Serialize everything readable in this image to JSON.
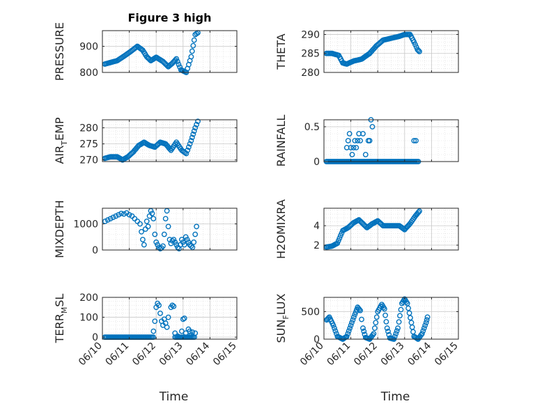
{
  "figure": {
    "marker_color": "#0072BD",
    "axes_color": "#262626",
    "grid_color": "#d9d9d9"
  },
  "chart_data": [
    {
      "type": "scatter",
      "title": "Figure 3 high",
      "ylabel_main": "PRESSURE",
      "ylabel_sub": "",
      "ylim": [
        800,
        960
      ],
      "yticks": [
        800,
        900
      ],
      "ytick_labels": [
        "800",
        "900"
      ],
      "xlim": [
        0,
        5
      ],
      "xticks": [
        0,
        1,
        2,
        3,
        4,
        5
      ],
      "xtick_labels": [],
      "xlabel": "",
      "keys": [
        [
          0.09,
          832
        ],
        [
          0.3,
          838
        ],
        [
          0.55,
          845
        ],
        [
          0.8,
          862
        ],
        [
          1.05,
          880
        ],
        [
          1.3,
          900
        ],
        [
          1.5,
          885
        ],
        [
          1.65,
          860
        ],
        [
          1.8,
          845
        ],
        [
          2.0,
          858
        ],
        [
          2.25,
          842
        ],
        [
          2.45,
          822
        ],
        [
          2.6,
          835
        ],
        [
          2.75,
          852
        ],
        [
          2.92,
          810
        ],
        [
          3.12,
          800
        ],
        [
          3.3,
          860
        ],
        [
          3.45,
          945
        ],
        [
          3.55,
          952
        ]
      ]
    },
    {
      "type": "scatter",
      "title": "",
      "ylabel_main": "THETA",
      "ylabel_sub": "",
      "ylim": [
        280,
        291
      ],
      "yticks": [
        280,
        285,
        290
      ],
      "ytick_labels": [
        "280",
        "285",
        "290"
      ],
      "xlim": [
        0,
        5
      ],
      "xticks": [
        0,
        1,
        2,
        3,
        4,
        5
      ],
      "xtick_labels": [],
      "xlabel": "",
      "keys": [
        [
          0.09,
          285
        ],
        [
          0.3,
          285
        ],
        [
          0.55,
          284.5
        ],
        [
          0.7,
          282.5
        ],
        [
          0.85,
          282.2
        ],
        [
          1.1,
          283
        ],
        [
          1.4,
          283.5
        ],
        [
          1.7,
          285
        ],
        [
          1.95,
          287
        ],
        [
          2.2,
          288.5
        ],
        [
          2.5,
          289
        ],
        [
          2.8,
          289.5
        ],
        [
          3.0,
          290
        ],
        [
          3.2,
          290
        ],
        [
          3.35,
          288
        ],
        [
          3.48,
          286
        ],
        [
          3.55,
          285.5
        ]
      ]
    },
    {
      "type": "scatter",
      "title": "",
      "ylabel_main": "AIR",
      "ylabel_sub": "T",
      "ylabel_tail": "EMP",
      "ylim": [
        269.5,
        282.5
      ],
      "yticks": [
        270,
        275,
        280
      ],
      "ytick_labels": [
        "270",
        "275",
        "280"
      ],
      "xlim": [
        0,
        5
      ],
      "xticks": [
        0,
        1,
        2,
        3,
        4,
        5
      ],
      "xtick_labels": [],
      "xlabel": "",
      "keys": [
        [
          0.09,
          270.5
        ],
        [
          0.3,
          271
        ],
        [
          0.55,
          271
        ],
        [
          0.75,
          270
        ],
        [
          0.95,
          271
        ],
        [
          1.15,
          272.5
        ],
        [
          1.35,
          274.5
        ],
        [
          1.55,
          275.5
        ],
        [
          1.75,
          274.5
        ],
        [
          1.95,
          274
        ],
        [
          2.15,
          275.5
        ],
        [
          2.35,
          275
        ],
        [
          2.55,
          273
        ],
        [
          2.75,
          275.5
        ],
        [
          2.95,
          273
        ],
        [
          3.12,
          272
        ],
        [
          3.3,
          276
        ],
        [
          3.45,
          280
        ],
        [
          3.55,
          282
        ]
      ]
    },
    {
      "type": "scatter",
      "title": "",
      "ylabel_main": "RAINFALL",
      "ylabel_sub": "",
      "ylim": [
        0,
        0.6
      ],
      "yticks": [
        0,
        0.5
      ],
      "ytick_labels": [
        "0",
        "0.5"
      ],
      "xlim": [
        0,
        5
      ],
      "xticks": [
        0,
        1,
        2,
        3,
        4,
        5
      ],
      "xtick_labels": [],
      "xlabel": "",
      "keys": [],
      "points": [
        [
          0.85,
          0.2
        ],
        [
          0.9,
          0.3
        ],
        [
          0.95,
          0.4
        ],
        [
          1.0,
          0.2
        ],
        [
          1.05,
          0.1
        ],
        [
          1.1,
          0.2
        ],
        [
          1.15,
          0.3
        ],
        [
          1.2,
          0.2
        ],
        [
          1.25,
          0.3
        ],
        [
          1.3,
          0.4
        ],
        [
          1.35,
          0.3
        ],
        [
          1.45,
          0.4
        ],
        [
          1.55,
          0.1
        ],
        [
          1.65,
          0.3
        ],
        [
          1.7,
          0.3
        ],
        [
          1.75,
          0.6
        ],
        [
          1.8,
          0.5
        ],
        [
          3.35,
          0.3
        ],
        [
          3.42,
          0.3
        ]
      ],
      "zero_ranges": [
        [
          0.09,
          3.55
        ]
      ]
    },
    {
      "type": "scatter",
      "title": "",
      "ylabel_main": "MIXDEPTH",
      "ylabel_sub": "",
      "ylim": [
        0,
        1600
      ],
      "yticks": [
        0,
        1000
      ],
      "ytick_labels": [
        "0",
        "1000"
      ],
      "xlim": [
        0,
        5
      ],
      "xticks": [
        0,
        1,
        2,
        3,
        4,
        5
      ],
      "xtick_labels": [],
      "xlabel": "",
      "keys": [],
      "points": [
        [
          0.1,
          1100
        ],
        [
          0.2,
          1150
        ],
        [
          0.3,
          1200
        ],
        [
          0.4,
          1250
        ],
        [
          0.5,
          1300
        ],
        [
          0.6,
          1350
        ],
        [
          0.7,
          1400
        ],
        [
          0.8,
          1380
        ],
        [
          0.9,
          1420
        ],
        [
          1.0,
          1350
        ],
        [
          1.1,
          1300
        ],
        [
          1.2,
          1200
        ],
        [
          1.3,
          1100
        ],
        [
          1.4,
          1000
        ],
        [
          1.45,
          700
        ],
        [
          1.5,
          400
        ],
        [
          1.55,
          200
        ],
        [
          1.6,
          800
        ],
        [
          1.65,
          1100
        ],
        [
          1.7,
          900
        ],
        [
          1.75,
          1300
        ],
        [
          1.8,
          1500
        ],
        [
          1.85,
          1400
        ],
        [
          1.9,
          1200
        ],
        [
          1.95,
          600
        ],
        [
          2.0,
          300
        ],
        [
          2.05,
          200
        ],
        [
          2.1,
          100
        ],
        [
          2.15,
          50
        ],
        [
          2.2,
          80
        ],
        [
          2.25,
          150
        ],
        [
          2.3,
          600
        ],
        [
          2.35,
          1200
        ],
        [
          2.4,
          1500
        ],
        [
          2.45,
          900
        ],
        [
          2.5,
          400
        ],
        [
          2.55,
          250
        ],
        [
          2.6,
          350
        ],
        [
          2.65,
          400
        ],
        [
          2.7,
          300
        ],
        [
          2.75,
          200
        ],
        [
          2.8,
          100
        ],
        [
          2.85,
          50
        ],
        [
          2.9,
          200
        ],
        [
          2.95,
          400
        ],
        [
          3.0,
          300
        ],
        [
          3.05,
          200
        ],
        [
          3.1,
          500
        ],
        [
          3.15,
          400
        ],
        [
          3.2,
          300
        ],
        [
          3.25,
          200
        ],
        [
          3.3,
          150
        ],
        [
          3.35,
          100
        ],
        [
          3.4,
          300
        ],
        [
          3.45,
          600
        ],
        [
          3.5,
          900
        ]
      ]
    },
    {
      "type": "scatter",
      "title": "",
      "ylabel_main": "H2OMIXRA",
      "ylabel_sub": "",
      "ylim": [
        1.5,
        5.8
      ],
      "yticks": [
        2,
        4
      ],
      "ytick_labels": [
        "2",
        "4"
      ],
      "xlim": [
        0,
        5
      ],
      "xticks": [
        0,
        1,
        2,
        3,
        4,
        5
      ],
      "xtick_labels": [],
      "xlabel": "",
      "keys": [
        [
          0.09,
          1.8
        ],
        [
          0.3,
          1.9
        ],
        [
          0.5,
          2.2
        ],
        [
          0.7,
          3.5
        ],
        [
          0.9,
          3.8
        ],
        [
          1.1,
          4.3
        ],
        [
          1.3,
          4.6
        ],
        [
          1.45,
          4.2
        ],
        [
          1.6,
          3.8
        ],
        [
          1.8,
          4.2
        ],
        [
          2.0,
          4.5
        ],
        [
          2.2,
          4.0
        ],
        [
          2.5,
          4.0
        ],
        [
          2.8,
          4.0
        ],
        [
          3.0,
          3.6
        ],
        [
          3.2,
          4.2
        ],
        [
          3.4,
          5.0
        ],
        [
          3.55,
          5.5
        ]
      ]
    },
    {
      "type": "scatter",
      "title": "",
      "ylabel_main": "TERR",
      "ylabel_sub": "M",
      "ylabel_tail": "SL",
      "ylim": [
        -10,
        200
      ],
      "yticks": [
        0,
        100,
        200
      ],
      "ytick_labels": [
        "0",
        "100",
        "200"
      ],
      "xlim": [
        0,
        5
      ],
      "xticks": [
        0,
        1,
        2,
        3,
        4,
        5
      ],
      "xtick_labels": [
        "06/10",
        "06/11",
        "06/12",
        "06/13",
        "06/14",
        "06/15"
      ],
      "xlabel": "Time",
      "keys": [],
      "points": [
        [
          1.9,
          30
        ],
        [
          1.95,
          80
        ],
        [
          2.0,
          150
        ],
        [
          2.05,
          170
        ],
        [
          2.1,
          160
        ],
        [
          2.15,
          120
        ],
        [
          2.2,
          80
        ],
        [
          2.25,
          60
        ],
        [
          2.3,
          90
        ],
        [
          2.35,
          70
        ],
        [
          2.4,
          50
        ],
        [
          2.45,
          100
        ],
        [
          2.55,
          150
        ],
        [
          2.6,
          160
        ],
        [
          2.65,
          155
        ],
        [
          2.7,
          20
        ],
        [
          2.8,
          5
        ],
        [
          2.95,
          30
        ],
        [
          3.0,
          90
        ],
        [
          3.05,
          95
        ],
        [
          3.1,
          20
        ],
        [
          3.2,
          40
        ],
        [
          3.25,
          30
        ],
        [
          3.3,
          10
        ],
        [
          3.35,
          25
        ],
        [
          3.45,
          20
        ]
      ],
      "zero_ranges": [
        [
          0.09,
          1.9
        ],
        [
          2.7,
          3.45
        ]
      ]
    },
    {
      "type": "scatter",
      "title": "",
      "ylabel_main": "SUN",
      "ylabel_sub": "F",
      "ylabel_tail": "LUX",
      "ylim": [
        0,
        760
      ],
      "yticks": [
        0,
        500
      ],
      "ytick_labels": [
        "0",
        "500"
      ],
      "xlim": [
        0,
        5
      ],
      "xticks": [
        0,
        1,
        2,
        3,
        4,
        5
      ],
      "xtick_labels": [
        "06/10",
        "06/11",
        "06/12",
        "06/13",
        "06/14",
        "06/15"
      ],
      "xlabel": "Time",
      "keys": [
        [
          0.1,
          350
        ],
        [
          0.2,
          400
        ],
        [
          0.35,
          250
        ],
        [
          0.5,
          50
        ],
        [
          0.7,
          0
        ],
        [
          0.85,
          50
        ],
        [
          1.0,
          250
        ],
        [
          1.15,
          450
        ],
        [
          1.25,
          580
        ],
        [
          1.35,
          520
        ],
        [
          1.45,
          200
        ],
        [
          1.55,
          30
        ],
        [
          1.7,
          0
        ],
        [
          1.85,
          100
        ],
        [
          2.0,
          500
        ],
        [
          2.15,
          630
        ],
        [
          2.25,
          550
        ],
        [
          2.35,
          200
        ],
        [
          2.45,
          20
        ],
        [
          2.6,
          0
        ],
        [
          2.75,
          200
        ],
        [
          2.9,
          650
        ],
        [
          3.0,
          730
        ],
        [
          3.1,
          650
        ],
        [
          3.25,
          300
        ],
        [
          3.35,
          50
        ],
        [
          3.5,
          0
        ],
        [
          3.65,
          100
        ],
        [
          3.8,
          300
        ],
        [
          3.85,
          400
        ]
      ]
    }
  ]
}
